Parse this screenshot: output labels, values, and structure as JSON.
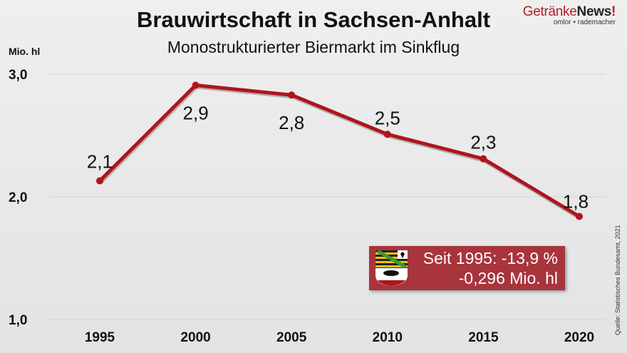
{
  "header": {
    "title": "Brauwirtschaft in Sachsen-Anhalt",
    "subtitle": "Monostrukturierter Biermarkt im Sinkflug"
  },
  "logo": {
    "brand_a": "Getränke",
    "brand_b": "News",
    "brand_c": "!",
    "tagline": "omlor • rademacher"
  },
  "source": "Quelle: Statistisches Bundesamt, 2021",
  "annotation": {
    "line1": "Seit 1995: -13,9 %",
    "line2": "-0,296 Mio. hl",
    "icon": "sachsen-anhalt-coat-of-arms"
  },
  "chart_data": {
    "type": "line",
    "title": "Brauwirtschaft in Sachsen-Anhalt",
    "subtitle": "Monostrukturierter Biermarkt im Sinkflug",
    "ylabel": "Mio. hl",
    "ylim": [
      1.0,
      3.0
    ],
    "yticks": [
      "1,0",
      "2,0",
      "3,0"
    ],
    "grid": true,
    "categories": [
      "1995",
      "2000",
      "2005",
      "2010",
      "2015",
      "2020"
    ],
    "values": [
      2.13,
      2.91,
      2.83,
      2.51,
      2.31,
      1.84
    ],
    "data_labels": [
      "2,1",
      "2,9",
      "2,8",
      "2,5",
      "2,3",
      "1,8"
    ],
    "line_color": "#b0141c"
  }
}
